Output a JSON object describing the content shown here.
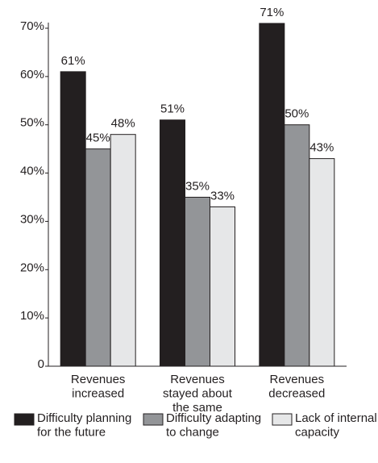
{
  "chart_data": {
    "type": "bar",
    "categories": [
      "Revenues\nincreased",
      "Revenues\nstayed about\nthe same",
      "Revenues\ndecreased"
    ],
    "series": [
      {
        "name": "Difficulty planning\nfor the future",
        "color": "#231f20",
        "values": [
          61,
          51,
          71
        ],
        "value_labels": [
          "61%",
          "51%",
          "71%"
        ]
      },
      {
        "name": "Difficulty adapting\nto change",
        "color": "#939598",
        "values": [
          45,
          35,
          50
        ],
        "value_labels": [
          "45%",
          "35%",
          "50%"
        ]
      },
      {
        "name": "Lack of internal\ncapacity",
        "color": "#e6e7e8",
        "values": [
          48,
          33,
          43
        ],
        "value_labels": [
          "48%",
          "33%",
          "43%"
        ]
      }
    ],
    "ylim": [
      0,
      70
    ],
    "yticks": [
      0,
      {
        "value": 10,
        "label": "10%"
      },
      {
        "value": 20,
        "label": "20%"
      },
      {
        "value": 30,
        "label": "30%"
      },
      {
        "value": 40,
        "label": "40%"
      },
      {
        "value": 50,
        "label": "50%"
      },
      {
        "value": 60,
        "label": "60%"
      },
      {
        "value": 70,
        "label": "70%"
      }
    ],
    "grid": false
  }
}
